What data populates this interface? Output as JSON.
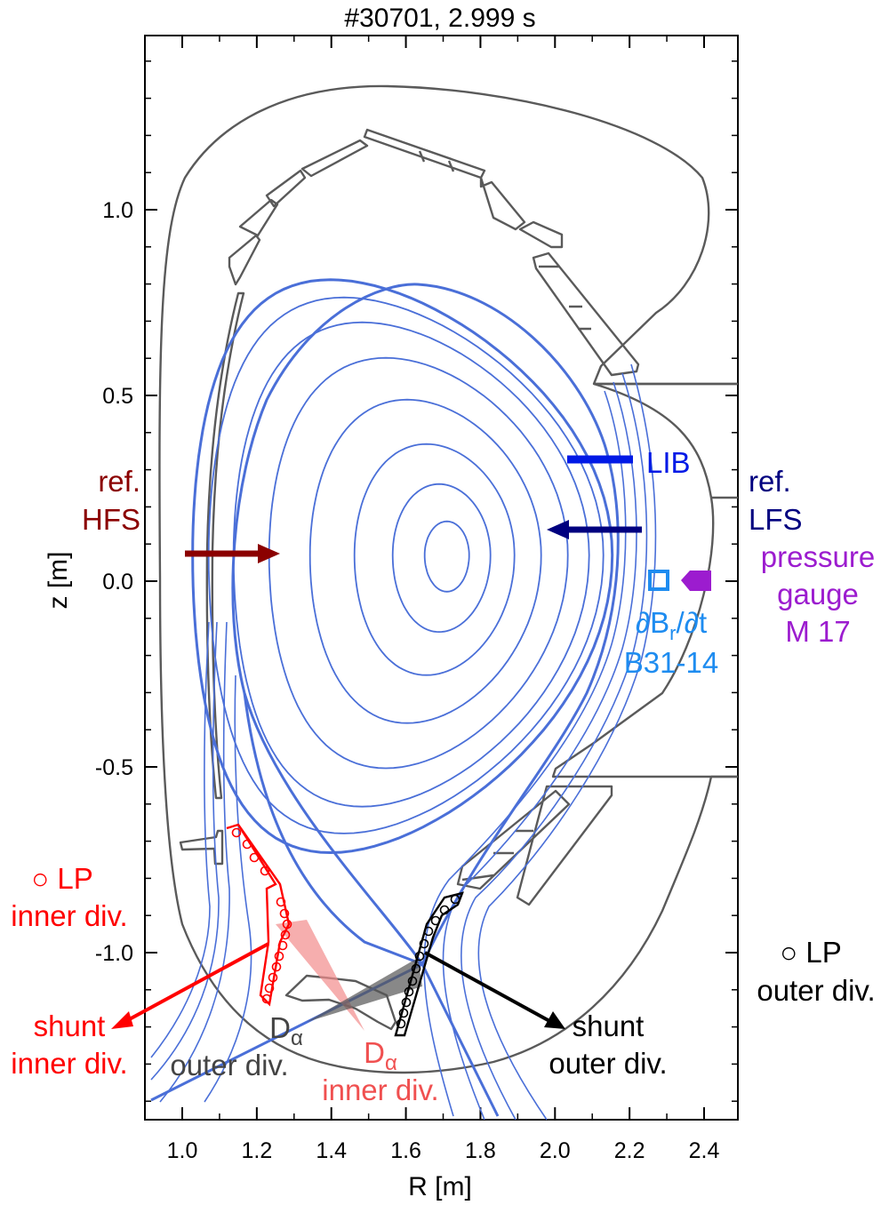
{
  "chart_data": {
    "type": "contour",
    "title": "#30701, 2.999 s",
    "xlabel": "R [m]",
    "ylabel": "z [m]",
    "xlim": [
      0.9,
      2.5
    ],
    "ylim": [
      -1.45,
      1.45
    ],
    "x_ticks": [
      "1.0",
      "1.2",
      "1.4",
      "1.6",
      "1.8",
      "2.0",
      "2.2",
      "2.4"
    ],
    "y_ticks": [
      "1.0",
      "0.5",
      "0.0",
      "-0.5",
      "-1.0"
    ],
    "x_tick_values": [
      1.0,
      1.2,
      1.4,
      1.6,
      1.8,
      2.0,
      2.2,
      2.4
    ],
    "y_tick_values": [
      1.0,
      0.5,
      0.0,
      -0.5,
      -1.0
    ],
    "magnetic_axis": {
      "R": 1.71,
      "z": 0.07
    },
    "x_point": {
      "R": 1.47,
      "z": -0.93
    }
  },
  "annotations": {
    "ref_hfs": {
      "line1": "ref.",
      "line2": "HFS",
      "color": "#8b0000"
    },
    "ref_lfs": {
      "line1": "ref.",
      "line2": "LFS",
      "color": "#00007f"
    },
    "lib": {
      "text": "LIB",
      "color": "#0019e6"
    },
    "pressure": {
      "line1": "pressure",
      "line2": "gauge",
      "line3": "M 17",
      "color": "#9c1ccf"
    },
    "dbr": {
      "prefix": "∂B",
      "sub": "r",
      "suffix": "/∂t",
      "line2": "B31-14",
      "color": "#1e8cf0"
    },
    "lp_inner": {
      "line1": "○ LP",
      "line2": "inner div.",
      "color": "#ff0000"
    },
    "lp_outer": {
      "line1": "○ LP",
      "line2": "outer div.",
      "color": "#000000"
    },
    "shunt_inner": {
      "line1": "shunt",
      "line2": "inner div.",
      "color": "#ff0000"
    },
    "shunt_outer": {
      "line1": "shunt",
      "line2": "outer div.",
      "color": "#000000"
    },
    "dalpha_outer": {
      "main": "D",
      "sub": "α",
      "line2": "outer div.",
      "color": "#444444"
    },
    "dalpha_inner": {
      "main": "D",
      "sub": "α",
      "line2": "inner div.",
      "color": "#f05050"
    }
  },
  "colors": {
    "flux": "#4a6fd8",
    "wall": "#5a5a5a"
  }
}
